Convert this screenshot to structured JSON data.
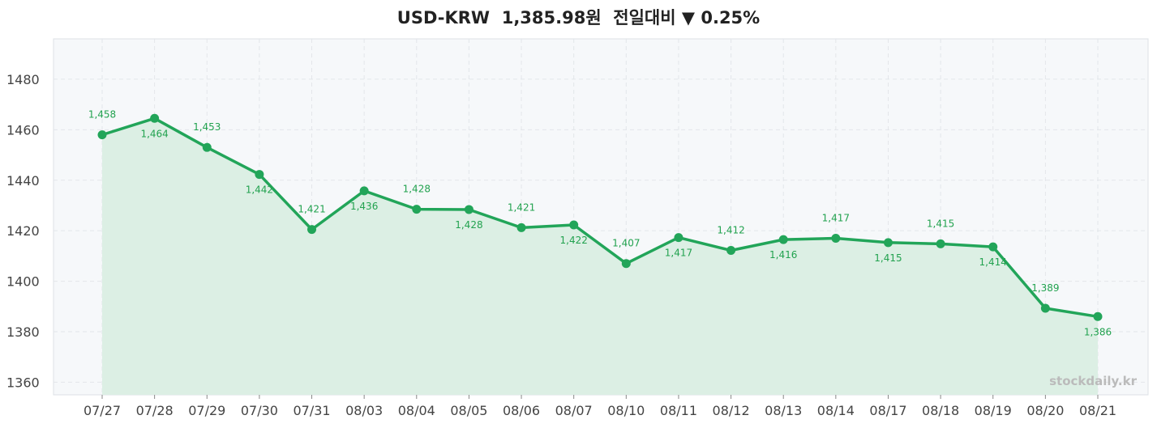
{
  "title": {
    "pair": "USD-KRW",
    "price": "1,385.98원",
    "change_label": "전일대비",
    "change_arrow": "▼",
    "change_pct": "0.25%"
  },
  "watermark": "stockdaily.kr",
  "colors": {
    "line": "#22a559",
    "fill": "#dcefe4",
    "plot_bg": "#f6f8fa",
    "label": "#22a24f"
  },
  "chart_data": {
    "type": "line",
    "title": "USD-KRW 1,385.98원 전일대비 ▼ 0.25%",
    "xlabel": "",
    "ylabel": "",
    "categories": [
      "07/27",
      "07/28",
      "07/29",
      "07/30",
      "07/31",
      "08/03",
      "08/04",
      "08/05",
      "08/06",
      "08/07",
      "08/10",
      "08/11",
      "08/12",
      "08/13",
      "08/14",
      "08/17",
      "08/18",
      "08/19",
      "08/20",
      "08/21"
    ],
    "values": [
      1458,
      1464.5,
      1453,
      1442.3,
      1420.5,
      1435.8,
      1428.5,
      1428.4,
      1421.2,
      1422.3,
      1407,
      1417.3,
      1412.2,
      1416.5,
      1417,
      1415.3,
      1414.8,
      1413.6,
      1389.3,
      1386
    ],
    "data_labels": [
      "1,458",
      "1,464",
      "1,453",
      "1,442",
      "1,421",
      "1,436",
      "1,428",
      "1,428",
      "1,421",
      "1,422",
      "1,407",
      "1,417",
      "1,412",
      "1,416",
      "1,417",
      "1,415",
      "1,415",
      "1,414",
      "1,389",
      "1,386"
    ],
    "ylim": [
      1355,
      1496
    ],
    "yticks": [
      1360,
      1380,
      1400,
      1420,
      1440,
      1460,
      1480
    ],
    "grid": true,
    "area_fill": true,
    "markers": true
  }
}
